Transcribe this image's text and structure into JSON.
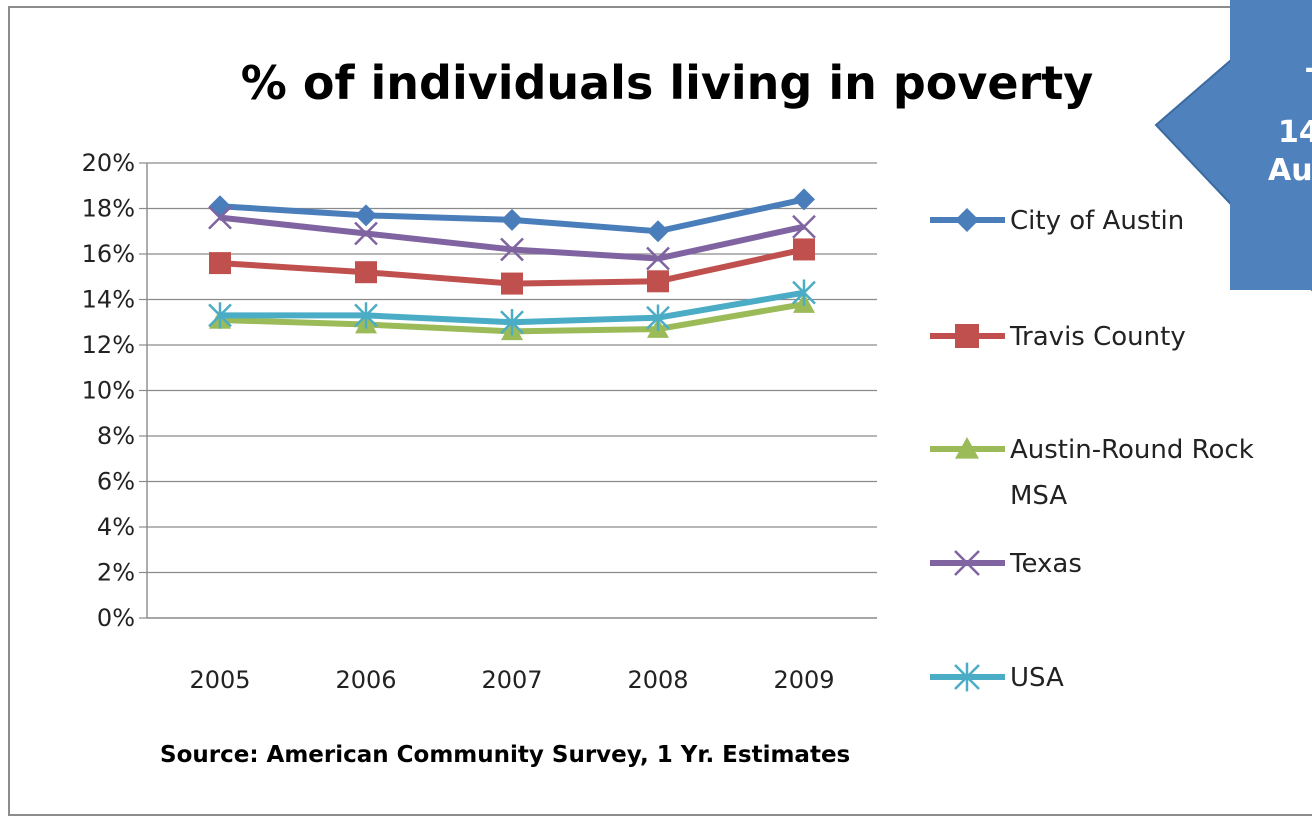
{
  "chart_data": {
    "type": "line",
    "title": "% of individuals living in poverty",
    "categories": [
      "2005",
      "2006",
      "2007",
      "2008",
      "2009"
    ],
    "y_ticks": [
      "0%",
      "2%",
      "4%",
      "6%",
      "8%",
      "10%",
      "12%",
      "14%",
      "16%",
      "18%",
      "20%"
    ],
    "ylim": [
      0,
      20
    ],
    "grid": true,
    "legend_position": "right",
    "series": [
      {
        "name": "City of Austin",
        "name_lines": [
          "City of Austin"
        ],
        "color": "#4a7ebb",
        "marker": "diamond",
        "values": [
          18.1,
          17.7,
          17.5,
          17.0,
          18.4
        ]
      },
      {
        "name": "Travis County",
        "name_lines": [
          "Travis County"
        ],
        "color": "#c0504d",
        "marker": "square",
        "values": [
          15.6,
          15.2,
          14.7,
          14.8,
          16.2
        ]
      },
      {
        "name": "Austin-Round Rock MSA",
        "name_lines": [
          "Austin-Round Rock",
          "MSA"
        ],
        "color": "#9bbb59",
        "marker": "triangle",
        "values": [
          13.1,
          12.9,
          12.6,
          12.7,
          13.8
        ]
      },
      {
        "name": "Texas",
        "name_lines": [
          "Texas"
        ],
        "color": "#8064a2",
        "marker": "x",
        "values": [
          17.6,
          16.9,
          16.2,
          15.8,
          17.2
        ]
      },
      {
        "name": "USA",
        "name_lines": [
          "USA"
        ],
        "color": "#4bacc6",
        "marker": "star",
        "values": [
          13.3,
          13.3,
          13.0,
          13.2,
          14.3
        ]
      }
    ],
    "annotation": "Source: American Community Survey, 1 Yr. Estimates"
  },
  "banner": {
    "color": "#4f81bd",
    "lines": [
      "T",
      "14",
      "Au"
    ]
  }
}
